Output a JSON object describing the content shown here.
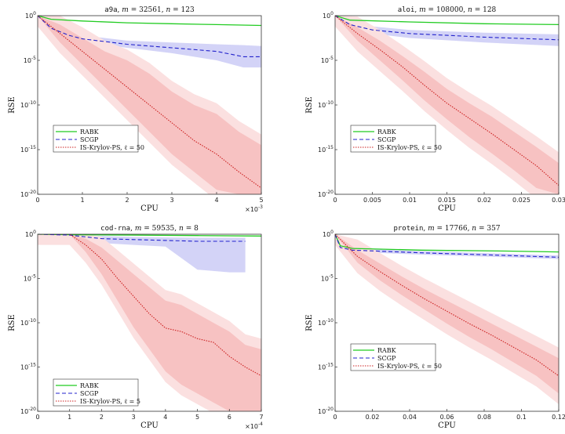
{
  "figure": {
    "colors": {
      "rabk": "#22cc22",
      "scgp": "#2222cc",
      "iskrylov": "#cc2222",
      "scgp_band": "#c8c8f5",
      "red_band_outer": "#fbe0e0",
      "red_band_inner": "#f7c2c2"
    }
  },
  "chart_data": [
    {
      "type": "line",
      "title": "a9a, m = 32561, n = 123",
      "title_parts": {
        "dataset": "a9a",
        "m_label": "m",
        "m_value": "32561",
        "n_label": "n",
        "n_value": "123"
      },
      "xlabel": "CPU",
      "ylabel": "RSE",
      "xlim": [
        0,
        5
      ],
      "ylim_log10": [
        -20,
        0
      ],
      "xticks": [
        "0",
        "1",
        "2",
        "3",
        "4",
        "5"
      ],
      "yticks": [
        "10^0",
        "10^-5",
        "10^-10",
        "10^-15",
        "10^-20"
      ],
      "x_multiplier": "×10^-3",
      "x_multiplier_exp": "-3",
      "legend": [
        "RABK",
        "SCGP",
        "IS-Krylov-PS, ℓ = 50"
      ],
      "legend_position": "center-left",
      "series": [
        {
          "name": "RABK",
          "x": [
            0,
            0.3,
            1,
            2,
            3,
            4,
            5
          ],
          "log10_y": [
            0,
            -0.4,
            -0.6,
            -0.8,
            -0.9,
            -1.0,
            -1.1
          ]
        },
        {
          "name": "SCGP",
          "x": [
            0,
            0.3,
            0.7,
            1,
            2,
            3,
            4,
            4.6,
            5
          ],
          "log10_y": [
            0,
            -1.4,
            -2.2,
            -2.6,
            -3.2,
            -3.6,
            -4.0,
            -4.6,
            -4.6
          ],
          "band_log10": {
            "upper": [
              0,
              -1.1,
              -1.8,
              -2.2,
              -2.8,
              -3.0,
              -3.2,
              -3.3,
              -3.4
            ],
            "lower": [
              0,
              -1.7,
              -2.6,
              -3.0,
              -3.6,
              -4.2,
              -5.0,
              -5.8,
              -5.8
            ]
          }
        },
        {
          "name": "IS-Krylov-PS, ℓ = 50",
          "x": [
            0,
            0.5,
            1,
            1.5,
            2,
            2.5,
            3,
            3.5,
            4,
            4.5,
            5
          ],
          "log10_y": [
            0,
            -2.0,
            -4.0,
            -6.0,
            -8.0,
            -10.0,
            -12.0,
            -14.0,
            -15.5,
            -17.5,
            -19.3
          ],
          "band_log10": {
            "upper": [
              0,
              -1.0,
              -2.5,
              -4.0,
              -5.0,
              -6.5,
              -8.5,
              -10.0,
              -11.0,
              -13.0,
              -14.5
            ],
            "lower": [
              0,
              -3.0,
              -5.5,
              -8.0,
              -10.5,
              -13.0,
              -15.5,
              -17.5,
              -19.5,
              -20,
              -20
            ]
          }
        }
      ]
    },
    {
      "type": "line",
      "title": "aloi, m = 108000, n = 128",
      "title_parts": {
        "dataset": "aloi",
        "m_label": "m",
        "m_value": "108000",
        "n_label": "n",
        "n_value": "128"
      },
      "xlabel": "CPU",
      "ylabel": "RSE",
      "xlim": [
        0,
        0.03
      ],
      "ylim_log10": [
        -20,
        0
      ],
      "xticks": [
        "0",
        "0.005",
        "0.01",
        "0.015",
        "0.02",
        "0.025",
        "0.03"
      ],
      "yticks": [
        "10^0",
        "10^-5",
        "10^-10",
        "10^-15",
        "10^-20"
      ],
      "x_multiplier": "",
      "x_multiplier_exp": "",
      "legend": [
        "RABK",
        "SCGP",
        "IS-Krylov-PS, ℓ = 50"
      ],
      "legend_position": "center-left",
      "series": [
        {
          "name": "RABK",
          "x": [
            0,
            0.002,
            0.01,
            0.02,
            0.03
          ],
          "log10_y": [
            0,
            -0.5,
            -0.7,
            -0.9,
            -1.0
          ]
        },
        {
          "name": "SCGP",
          "x": [
            0,
            0.002,
            0.005,
            0.01,
            0.02,
            0.03
          ],
          "log10_y": [
            0,
            -1.0,
            -1.6,
            -2.0,
            -2.4,
            -2.7
          ],
          "band_log10": {
            "upper": [
              0,
              -0.8,
              -1.2,
              -1.6,
              -1.9,
              -2.1
            ],
            "lower": [
              0,
              -1.3,
              -2.0,
              -2.5,
              -3.0,
              -3.4
            ]
          }
        },
        {
          "name": "IS-Krylov-PS, ℓ = 50",
          "x": [
            0,
            0.003,
            0.006,
            0.009,
            0.012,
            0.015,
            0.018,
            0.021,
            0.024,
            0.027,
            0.03
          ],
          "log10_y": [
            0,
            -2.0,
            -3.8,
            -5.7,
            -7.8,
            -9.8,
            -11.5,
            -13.2,
            -15.0,
            -16.8,
            -19.0
          ],
          "band_log10": {
            "upper": [
              0,
              -1.3,
              -2.8,
              -4.5,
              -6.3,
              -8.2,
              -9.8,
              -11.3,
              -13.0,
              -14.7,
              -16.5
            ],
            "lower": [
              0,
              -2.8,
              -5.0,
              -7.2,
              -9.5,
              -11.6,
              -13.6,
              -15.4,
              -17.3,
              -19.3,
              -20
            ]
          }
        }
      ]
    },
    {
      "type": "line",
      "title": "cod-rna, m = 59535, n = 8",
      "title_parts": {
        "dataset": "cod-rna",
        "m_label": "m",
        "m_value": "59535",
        "n_label": "n",
        "n_value": "8"
      },
      "xlabel": "CPU",
      "ylabel": "RSE",
      "xlim": [
        0,
        7
      ],
      "ylim_log10": [
        -20,
        0
      ],
      "xticks": [
        "0",
        "1",
        "2",
        "3",
        "4",
        "5",
        "6",
        "7"
      ],
      "yticks": [
        "10^0",
        "10^-5",
        "10^-10",
        "10^-15",
        "10^-20"
      ],
      "x_multiplier": "×10^-4",
      "x_multiplier_exp": "-4",
      "legend": [
        "RABK",
        "SCGP",
        "IS-Krylov-PS, ℓ = 5"
      ],
      "legend_position": "bottom-left",
      "series": [
        {
          "name": "RABK",
          "x": [
            0,
            1,
            3,
            5,
            7
          ],
          "log10_y": [
            0,
            -0.05,
            -0.1,
            -0.15,
            -0.2
          ]
        },
        {
          "name": "SCGP",
          "x": [
            0,
            1,
            1.5,
            2,
            3,
            4,
            5,
            6,
            6.5
          ],
          "log10_y": [
            0,
            -0.1,
            -0.3,
            -0.5,
            -0.6,
            -0.7,
            -0.8,
            -0.8,
            -0.8
          ],
          "band_log10": {
            "upper": [
              0,
              -0.05,
              -0.1,
              -0.2,
              -0.3,
              -0.35,
              -0.4,
              -0.4,
              -0.4
            ],
            "lower": [
              0,
              -0.2,
              -0.6,
              -1.0,
              -1.2,
              -1.4,
              -4.0,
              -4.3,
              -4.3
            ]
          }
        },
        {
          "name": "IS-Krylov-PS, ℓ = 5",
          "x": [
            0,
            1,
            1.5,
            2,
            2.5,
            3,
            3.5,
            4,
            4.5,
            5,
            5.5,
            6,
            6.5,
            7
          ],
          "log10_y": [
            0,
            0,
            -1.2,
            -2.8,
            -5.0,
            -7.0,
            -9.0,
            -10.6,
            -11.0,
            -11.8,
            -12.2,
            -13.8,
            -15.0,
            -16.0
          ],
          "band_log10": {
            "upper": [
              0,
              0,
              -0.5,
              -1.5,
              -3.0,
              -4.5,
              -6.0,
              -7.5,
              -8.0,
              -9.0,
              -10.0,
              -11.0,
              -12.5,
              -13.0
            ],
            "lower": [
              0,
              0,
              -2.0,
              -4.5,
              -7.5,
              -10.5,
              -13.0,
              -15.5,
              -17.0,
              -18.0,
              -19.0,
              -20,
              -20,
              -20
            ]
          }
        }
      ]
    },
    {
      "type": "line",
      "title": "protein, m = 17766, n = 357",
      "title_parts": {
        "dataset": "protein",
        "m_label": "m",
        "m_value": "17766",
        "n_label": "n",
        "n_value": "357"
      },
      "xlabel": "CPU",
      "ylabel": "RSE",
      "xlim": [
        0,
        0.13
      ],
      "ylim_log10": [
        -20,
        0
      ],
      "xticks": [
        "0",
        "0.02",
        "0.04",
        "0.06",
        "0.08",
        "0.1",
        "0.12"
      ],
      "yticks": [
        "10^0",
        "10^-5",
        "10^-10",
        "10^-15",
        "10^-20"
      ],
      "x_multiplier": "",
      "x_multiplier_exp": "",
      "legend": [
        "RABK",
        "SCGP",
        "IS-Krylov-PS, ℓ = 50"
      ],
      "legend_position": "center-left",
      "series": [
        {
          "name": "RABK",
          "x": [
            0,
            0.003,
            0.01,
            0.05,
            0.1,
            0.13
          ],
          "log10_y": [
            0,
            -1.3,
            -1.6,
            -1.8,
            -1.9,
            -2.0
          ]
        },
        {
          "name": "SCGP",
          "x": [
            0,
            0.003,
            0.01,
            0.05,
            0.1,
            0.13
          ],
          "log10_y": [
            0,
            -1.5,
            -1.8,
            -2.1,
            -2.4,
            -2.6
          ],
          "band_log10": {
            "upper": [
              0,
              -1.3,
              -1.6,
              -1.9,
              -2.2,
              -2.4
            ],
            "lower": [
              0,
              -1.7,
              -2.0,
              -2.3,
              -2.6,
              -2.8
            ]
          }
        },
        {
          "name": "IS-Krylov-PS, ℓ = 50",
          "x": [
            0,
            0.013,
            0.026,
            0.039,
            0.052,
            0.065,
            0.078,
            0.091,
            0.104,
            0.117,
            0.13
          ],
          "log10_y": [
            0,
            -2.5,
            -4.2,
            -5.8,
            -7.3,
            -8.7,
            -10.1,
            -11.4,
            -12.8,
            -14.2,
            -16.0
          ],
          "band_log10": {
            "upper": [
              0,
              -1.8,
              -3.3,
              -4.8,
              -6.2,
              -7.5,
              -8.8,
              -10.1,
              -11.4,
              -12.7,
              -14.0
            ],
            "lower": [
              0,
              -3.2,
              -5.2,
              -6.9,
              -8.5,
              -10.1,
              -11.6,
              -13.0,
              -14.5,
              -16.0,
              -18.0
            ]
          }
        }
      ]
    }
  ]
}
